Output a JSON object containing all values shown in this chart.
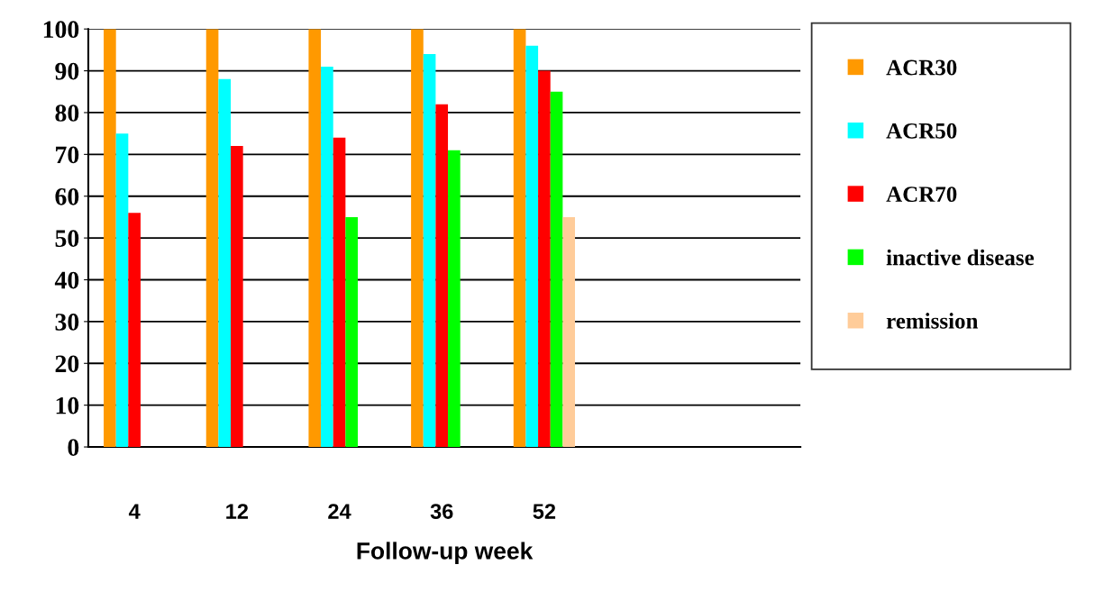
{
  "chart_data": {
    "type": "bar",
    "xlabel": "Follow-up week",
    "categories": [
      "4",
      "12",
      "24",
      "36",
      "52"
    ],
    "series": [
      {
        "name": "ACR30",
        "color": "#ff9900",
        "values": [
          100,
          100,
          100,
          100,
          100
        ]
      },
      {
        "name": "ACR50",
        "color": "#00ffff",
        "values": [
          75,
          88,
          91,
          94,
          96
        ]
      },
      {
        "name": "ACR70",
        "color": "#ff0000",
        "values": [
          56,
          72,
          74,
          82,
          90
        ]
      },
      {
        "name": "inactive disease",
        "color": "#00ff00",
        "values": [
          null,
          null,
          55,
          71,
          85
        ]
      },
      {
        "name": "remission",
        "color": "#ffcc99",
        "values": [
          null,
          null,
          null,
          null,
          55
        ]
      }
    ],
    "ylim": [
      0,
      100
    ],
    "yticks": [
      0,
      10,
      20,
      30,
      40,
      50,
      60,
      70,
      80,
      90,
      100
    ],
    "grid": "y",
    "legend": "right"
  }
}
